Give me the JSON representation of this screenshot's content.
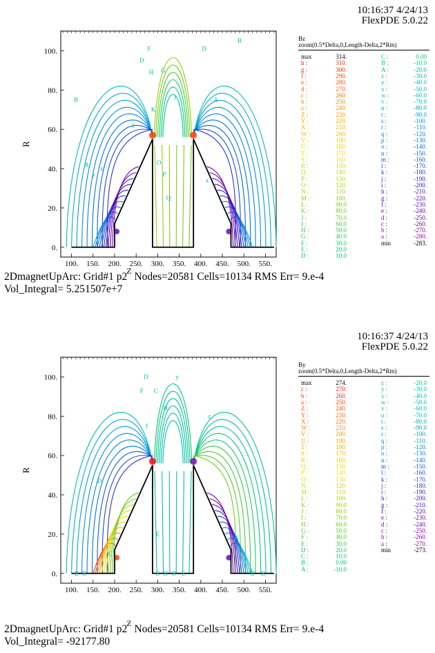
{
  "panels": [
    {
      "stamp_time": "10:16:37 4/24/13",
      "stamp_version": "FlexPDE 5.0.22",
      "variable": "Bz",
      "zoom": "zoom(0.5*Delta,0,Length-Delta,2*Rm)",
      "footer_pre": "2DmagnetUpArc:  Grid#1  p2",
      "footer_sup": "Z",
      "footer_post": " Nodes=20581 Cells=10134 RMS Err= 9.e-4",
      "footer_line2": "Vol_Integral=  5.251507e+7",
      "chart_data": {
        "type": "contour",
        "ylabel": "R",
        "xlim": [
          75,
          575
        ],
        "ylim": [
          -5,
          110
        ],
        "x_ticks": [
          100,
          150,
          200,
          250,
          300,
          350,
          400,
          450,
          500,
          550
        ],
        "x_tick_labels": [
          "100.",
          "150.",
          "200.",
          "250.",
          "300.",
          "350.",
          "400.",
          "450.",
          "500.",
          "550."
        ],
        "y_ticks": [
          0,
          20,
          40,
          60,
          80,
          100
        ],
        "y_tick_labels": [
          "0.",
          "20.",
          "40.",
          "60.",
          "80.",
          "100."
        ],
        "geometry_outline": [
          [
            100,
            0
          ],
          [
            200,
            0
          ],
          [
            200,
            12
          ],
          [
            288,
            55
          ],
          [
            288,
            0
          ],
          [
            383,
            0
          ],
          [
            383,
            55
          ],
          [
            470,
            12
          ],
          [
            470,
            0
          ],
          [
            570,
            0
          ]
        ],
        "legend_col1": [
          {
            "label": "max",
            "value": "314."
          },
          {
            "label": "h :",
            "value": "310."
          },
          {
            "label": "g :",
            "value": "300."
          },
          {
            "label": "f :",
            "value": "290."
          },
          {
            "label": "e :",
            "value": "280."
          },
          {
            "label": "d :",
            "value": "270."
          },
          {
            "label": "c :",
            "value": "260."
          },
          {
            "label": "b :",
            "value": "250."
          },
          {
            "label": "a :",
            "value": "240."
          },
          {
            "label": "Z :",
            "value": "230."
          },
          {
            "label": "Y :",
            "value": "220."
          },
          {
            "label": "X :",
            "value": "210."
          },
          {
            "label": "W :",
            "value": "200."
          },
          {
            "label": "V :",
            "value": "190."
          },
          {
            "label": "U :",
            "value": "180."
          },
          {
            "label": "T :",
            "value": "170."
          },
          {
            "label": "S :",
            "value": "160."
          },
          {
            "label": "R :",
            "value": "150."
          },
          {
            "label": "Q :",
            "value": "140."
          },
          {
            "label": "P :",
            "value": "130."
          },
          {
            "label": "O :",
            "value": "120."
          },
          {
            "label": "N :",
            "value": "110."
          },
          {
            "label": "M :",
            "value": "100."
          },
          {
            "label": "L :",
            "value": "90.0"
          },
          {
            "label": "K :",
            "value": "80.0"
          },
          {
            "label": "J :",
            "value": "70.0"
          },
          {
            "label": "I :",
            "value": "60.0"
          },
          {
            "label": "H :",
            "value": "50.0"
          },
          {
            "label": "G :",
            "value": "40.0"
          },
          {
            "label": "F :",
            "value": "30.0"
          },
          {
            "label": "E :",
            "value": "20.0"
          },
          {
            "label": "D :",
            "value": "10.0"
          }
        ],
        "legend_col2": [
          {
            "label": "C :",
            "value": "0.00"
          },
          {
            "label": "B :",
            "value": "-10.0"
          },
          {
            "label": "A :",
            "value": "-20.0"
          },
          {
            "label": "z :",
            "value": "-30.0"
          },
          {
            "label": "y :",
            "value": "-40.0"
          },
          {
            "label": "x :",
            "value": "-50.0"
          },
          {
            "label": "w :",
            "value": "-60.0"
          },
          {
            "label": "v :",
            "value": "-70.0"
          },
          {
            "label": "u :",
            "value": "-80.0"
          },
          {
            "label": "t :",
            "value": "-90.0"
          },
          {
            "label": "s :",
            "value": "-100."
          },
          {
            "label": "r :",
            "value": "-110."
          },
          {
            "label": "q :",
            "value": "-120."
          },
          {
            "label": "p :",
            "value": "-130."
          },
          {
            "label": "o :",
            "value": "-140."
          },
          {
            "label": "n :",
            "value": "-150."
          },
          {
            "label": "m :",
            "value": "-160."
          },
          {
            "label": "l :",
            "value": "-170."
          },
          {
            "label": "k :",
            "value": "-180."
          },
          {
            "label": "j :",
            "value": "-190."
          },
          {
            "label": "i :",
            "value": "-200."
          },
          {
            "label": "h :",
            "value": "-210."
          },
          {
            "label": "g :",
            "value": "-220."
          },
          {
            "label": "f :",
            "value": "-230."
          },
          {
            "label": "e :",
            "value": "-240."
          },
          {
            "label": "d :",
            "value": "-250."
          },
          {
            "label": "c :",
            "value": "-260."
          },
          {
            "label": "b :",
            "value": "-270."
          },
          {
            "label": "a :",
            "value": "-280."
          },
          {
            "label": "min",
            "value": "-283."
          }
        ],
        "contour_labels": [
          {
            "text": "B",
            "x": 110,
            "y": 75
          },
          {
            "text": "A",
            "x": 135,
            "y": 42
          },
          {
            "text": "y",
            "x": 152,
            "y": 37
          },
          {
            "text": "x",
            "x": 170,
            "y": 40
          },
          {
            "text": "z",
            "x": 243,
            "y": 62
          },
          {
            "text": "D",
            "x": 263,
            "y": 95
          },
          {
            "text": "F",
            "x": 280,
            "y": 101
          },
          {
            "text": "H",
            "x": 285,
            "y": 89
          },
          {
            "text": "G",
            "x": 313,
            "y": 90
          },
          {
            "text": "J",
            "x": 340,
            "y": 76
          },
          {
            "text": "K",
            "x": 290,
            "y": 70
          },
          {
            "text": "O",
            "x": 303,
            "y": 43
          },
          {
            "text": "P",
            "x": 315,
            "y": 37
          },
          {
            "text": "Q",
            "x": 325,
            "y": 25
          },
          {
            "text": "z",
            "x": 395,
            "y": 60
          },
          {
            "text": "A",
            "x": 435,
            "y": 75
          },
          {
            "text": "D",
            "x": 408,
            "y": 101
          },
          {
            "text": "B",
            "x": 490,
            "y": 105
          },
          {
            "text": "x",
            "x": 415,
            "y": 34
          }
        ],
        "color_scale": [
          "#ff0000",
          "#ff8800",
          "#f0e000",
          "#7ccc10",
          "#00c878",
          "#00b8c8",
          "#0070e8",
          "#4000c0",
          "#a000a0"
        ]
      }
    },
    {
      "stamp_time": "10:16:37 4/24/13",
      "stamp_version": "FlexPDE 5.0.22",
      "variable": "By",
      "zoom": "zoom(0.5*Delta,0,Length-Delta,2*Rm)",
      "footer_pre": "2DmagnetUpArc:  Grid#1  p2",
      "footer_sup": "Z",
      "footer_post": " Nodes=20581 Cells=10134 RMS Err= 9.e-4",
      "footer_line2": "Vol_Integral= -92177.80",
      "chart_data": {
        "type": "contour",
        "ylabel": "R",
        "xlim": [
          75,
          575
        ],
        "ylim": [
          -5,
          110
        ],
        "x_ticks": [
          100,
          150,
          200,
          250,
          300,
          350,
          400,
          450,
          500,
          550
        ],
        "x_tick_labels": [
          "100.",
          "150.",
          "200.",
          "250.",
          "300.",
          "350.",
          "400.",
          "450.",
          "500.",
          "550."
        ],
        "y_ticks": [
          0,
          20,
          40,
          60,
          80,
          100
        ],
        "y_tick_labels": [
          "0.",
          "20.",
          "40.",
          "60.",
          "80.",
          "100."
        ],
        "geometry_outline": [
          [
            100,
            0
          ],
          [
            200,
            0
          ],
          [
            200,
            12
          ],
          [
            288,
            55
          ],
          [
            288,
            0
          ],
          [
            383,
            0
          ],
          [
            383,
            55
          ],
          [
            470,
            12
          ],
          [
            470,
            0
          ],
          [
            570,
            0
          ]
        ],
        "legend_col1": [
          {
            "label": "max",
            "value": "274."
          },
          {
            "label": "c :",
            "value": "270."
          },
          {
            "label": "b :",
            "value": "260."
          },
          {
            "label": "a :",
            "value": "250."
          },
          {
            "label": "Z :",
            "value": "240."
          },
          {
            "label": "Y :",
            "value": "230."
          },
          {
            "label": "X :",
            "value": "220."
          },
          {
            "label": "W :",
            "value": "210."
          },
          {
            "label": "V :",
            "value": "200."
          },
          {
            "label": "U :",
            "value": "190."
          },
          {
            "label": "T :",
            "value": "180."
          },
          {
            "label": "S :",
            "value": "170."
          },
          {
            "label": "R :",
            "value": "160."
          },
          {
            "label": "Q :",
            "value": "150."
          },
          {
            "label": "P :",
            "value": "140."
          },
          {
            "label": "O :",
            "value": "130."
          },
          {
            "label": "N :",
            "value": "120."
          },
          {
            "label": "M :",
            "value": "110."
          },
          {
            "label": "L :",
            "value": "100."
          },
          {
            "label": "K :",
            "value": "90.0"
          },
          {
            "label": "J :",
            "value": "80.0"
          },
          {
            "label": "I :",
            "value": "70.0"
          },
          {
            "label": "H :",
            "value": "60.0"
          },
          {
            "label": "G :",
            "value": "50.0"
          },
          {
            "label": "F :",
            "value": "40.0"
          },
          {
            "label": "E :",
            "value": "30.0"
          },
          {
            "label": "D :",
            "value": "20.0"
          },
          {
            "label": "C :",
            "value": "10.0"
          },
          {
            "label": "B :",
            "value": "0.00"
          },
          {
            "label": "A :",
            "value": "-10.0"
          }
        ],
        "legend_col2": [
          {
            "label": "z :",
            "value": "-20.0"
          },
          {
            "label": "y :",
            "value": "-30.0"
          },
          {
            "label": "x :",
            "value": "-40.0"
          },
          {
            "label": "w :",
            "value": "-50.0"
          },
          {
            "label": "v :",
            "value": "-60.0"
          },
          {
            "label": "u :",
            "value": "-70.0"
          },
          {
            "label": "t :",
            "value": "-80.0"
          },
          {
            "label": "s :",
            "value": "-90.0"
          },
          {
            "label": "r :",
            "value": "-100."
          },
          {
            "label": "q :",
            "value": "-110."
          },
          {
            "label": "p :",
            "value": "-120."
          },
          {
            "label": "o :",
            "value": "-130."
          },
          {
            "label": "n :",
            "value": "-140."
          },
          {
            "label": "m :",
            "value": "-150."
          },
          {
            "label": "l :",
            "value": "-160."
          },
          {
            "label": "k :",
            "value": "-170."
          },
          {
            "label": "j :",
            "value": "-180."
          },
          {
            "label": "i :",
            "value": "-190."
          },
          {
            "label": "h :",
            "value": "-200."
          },
          {
            "label": "g :",
            "value": "-210."
          },
          {
            "label": "f :",
            "value": "-220."
          },
          {
            "label": "e :",
            "value": "-230."
          },
          {
            "label": "d :",
            "value": "-240."
          },
          {
            "label": "c :",
            "value": "-250."
          },
          {
            "label": "b :",
            "value": "-260."
          },
          {
            "label": "a :",
            "value": "-270."
          },
          {
            "label": "min",
            "value": "-273."
          }
        ],
        "contour_labels": [
          {
            "text": "D",
            "x": 273,
            "y": 100
          },
          {
            "text": "y",
            "x": 345,
            "y": 100
          },
          {
            "text": "F",
            "x": 263,
            "y": 93
          },
          {
            "text": "C",
            "x": 296,
            "y": 93
          },
          {
            "text": "I",
            "x": 275,
            "y": 75
          },
          {
            "text": "B",
            "x": 318,
            "y": 84
          },
          {
            "text": "z",
            "x": 420,
            "y": 80
          },
          {
            "text": "D",
            "x": 165,
            "y": 47
          },
          {
            "text": "C",
            "x": 190,
            "y": 10
          },
          {
            "text": "A",
            "x": 483,
            "y": 18
          },
          {
            "text": "B",
            "x": 112,
            "y": 0
          },
          {
            "text": "B",
            "x": 130,
            "y": 0
          },
          {
            "text": "B",
            "x": 300,
            "y": 0
          },
          {
            "text": "B",
            "x": 318,
            "y": 0
          },
          {
            "text": "E",
            "x": 300,
            "y": 20
          },
          {
            "text": "B",
            "x": 338,
            "y": 0
          },
          {
            "text": "E",
            "x": 360,
            "y": 0
          },
          {
            "text": "B",
            "x": 520,
            "y": 0
          },
          {
            "text": "B",
            "x": 545,
            "y": 0
          }
        ],
        "color_scale": [
          "#ff0000",
          "#ff8800",
          "#f0e000",
          "#7ccc10",
          "#00c878",
          "#00b8c8",
          "#0070e8",
          "#4000c0",
          "#a000a0"
        ]
      }
    }
  ]
}
